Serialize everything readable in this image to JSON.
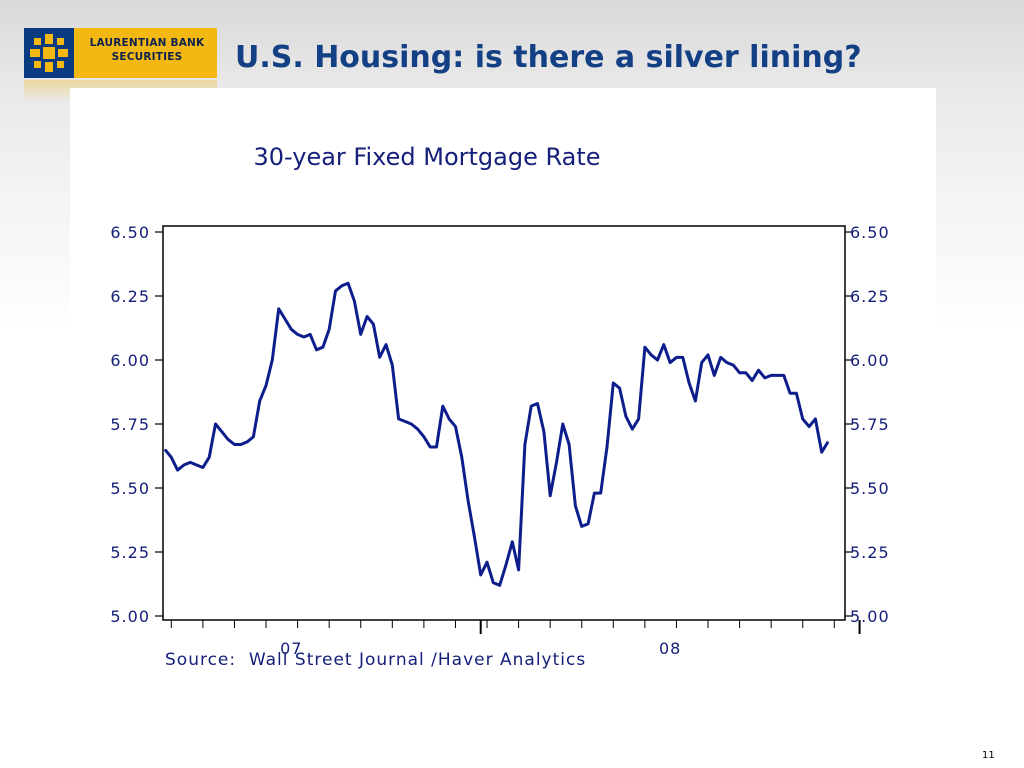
{
  "slide": {
    "title": "U.S. Housing: is there a silver lining?",
    "page_number": "11"
  },
  "logo": {
    "line1": "LAURENTIAN BANK",
    "line2": "SECURITIES",
    "brand_color": "#f3b811",
    "mark_color": "#0a3a80"
  },
  "source_text": "Source:  Wall Street Journal /Haver Analytics",
  "colors": {
    "title": "#133f84",
    "chart_text": "#16207a",
    "line": "#0d1e8c"
  },
  "chart_data": {
    "type": "line",
    "title": "30-year Fixed Mortgage Rate",
    "ylim": [
      5.0,
      6.5
    ],
    "y_ticks": [
      "6.50",
      "6.25",
      "6.00",
      "5.75",
      "5.50",
      "5.25",
      "5.00"
    ],
    "y_tick_values": [
      6.5,
      6.25,
      6.0,
      5.75,
      5.5,
      5.25,
      5.0
    ],
    "right_axis": true,
    "x_unit": "week",
    "xlim": [
      0,
      121
    ],
    "year_labels": [
      {
        "label": "07",
        "x": 20
      },
      {
        "label": "08",
        "x": 80
      }
    ],
    "year_boundaries": [
      50,
      110
    ],
    "series": [
      {
        "values": [
          5.65,
          5.62,
          5.57,
          5.59,
          5.6,
          5.59,
          5.58,
          5.62,
          5.75,
          5.72,
          5.69,
          5.67,
          5.67,
          5.68,
          5.7,
          5.84,
          5.9,
          6.0,
          6.2,
          6.16,
          6.12,
          6.1,
          6.09,
          6.1,
          6.04,
          6.05,
          6.12,
          6.27,
          6.29,
          6.3,
          6.23,
          6.1,
          6.17,
          6.14,
          6.01,
          6.06,
          5.98,
          5.77,
          5.76,
          5.75,
          5.73,
          5.7,
          5.66,
          5.66,
          5.82,
          5.77,
          5.74,
          5.62,
          5.45,
          5.31,
          5.16,
          5.21,
          5.13,
          5.12,
          5.2,
          5.29,
          5.18,
          5.67,
          5.82,
          5.83,
          5.72,
          5.47,
          5.6,
          5.75,
          5.67,
          5.43,
          5.35,
          5.36,
          5.48,
          5.48,
          5.66,
          5.91,
          5.89,
          5.78,
          5.73,
          5.77,
          6.05,
          6.02,
          6.0,
          6.06,
          5.99,
          6.01,
          6.01,
          5.91,
          5.84,
          5.99,
          6.02,
          5.94,
          6.01,
          5.99,
          5.98,
          5.95,
          5.95,
          5.92,
          5.96,
          5.93,
          5.94,
          5.94,
          5.94,
          5.87,
          5.87,
          5.77,
          5.74,
          5.77,
          5.64,
          5.68
        ]
      }
    ]
  }
}
